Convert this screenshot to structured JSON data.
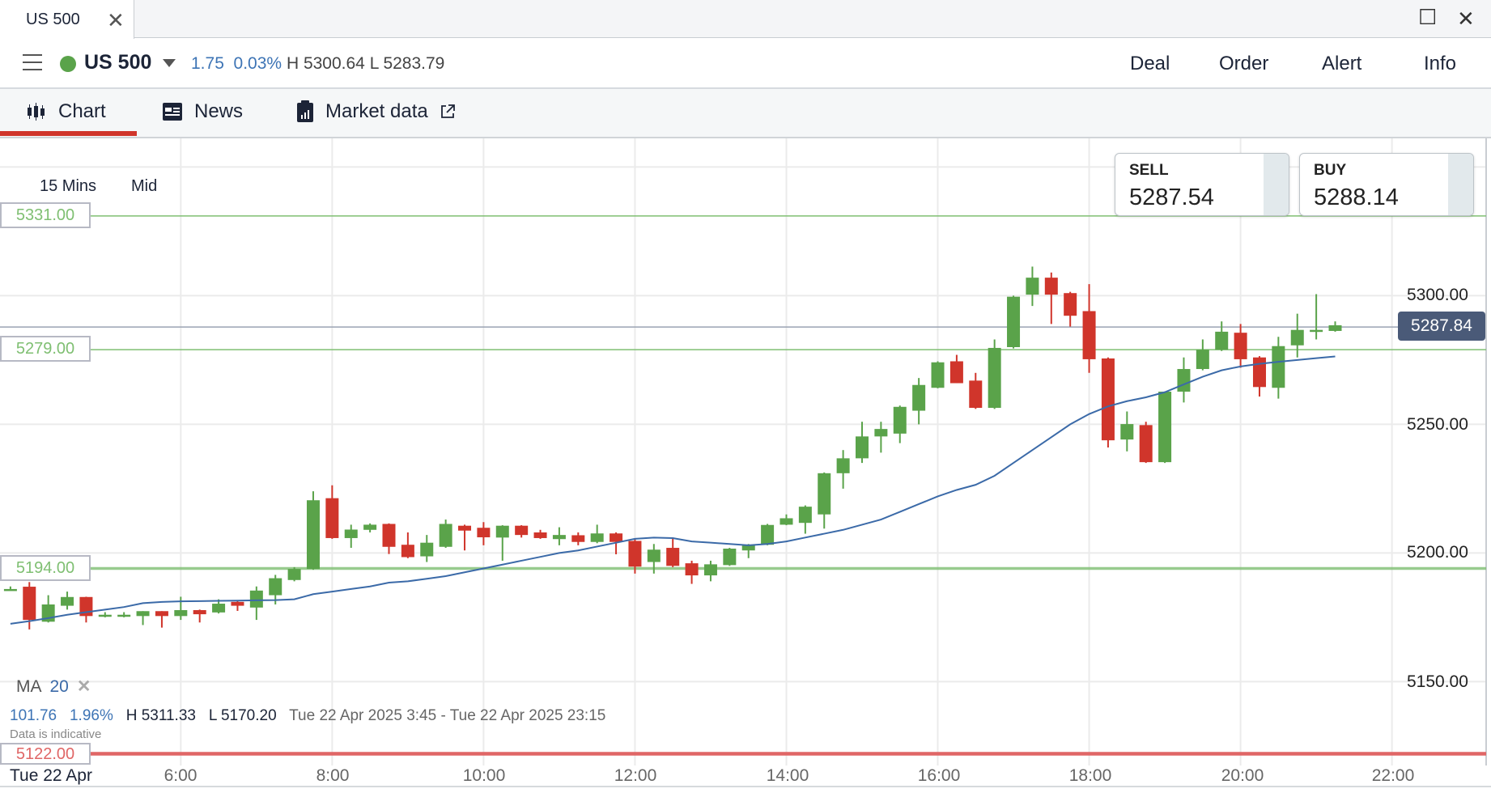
{
  "window": {
    "tab_title": "US 500",
    "close_icon": "close-icon",
    "maximize_icon": "maximize-icon"
  },
  "header": {
    "instrument": "US 500",
    "status_color": "#5aa34a",
    "change": "1.75",
    "change_pct": "0.03%",
    "high": "H 5300.64",
    "low": "L 5283.79",
    "actions": [
      "Deal",
      "Order",
      "Alert",
      "Info"
    ]
  },
  "nav": {
    "tabs": [
      {
        "label": "Chart",
        "icon": "candlestick-icon",
        "active": true
      },
      {
        "label": "News",
        "icon": "newspaper-icon"
      },
      {
        "label": "Market data",
        "icon": "clipboard-chart-icon",
        "external": true
      }
    ]
  },
  "chart": {
    "interval": "15 Mins",
    "price_type": "Mid",
    "sell": {
      "label": "SELL",
      "value": "5287.54"
    },
    "buy": {
      "label": "BUY",
      "value": "5288.14"
    },
    "current_price": "5287.84",
    "levels": [
      {
        "value": "5331.00",
        "color": "#7fbf72"
      },
      {
        "value": "5279.00",
        "color": "#7fbf72"
      },
      {
        "value": "5194.00",
        "color": "#7fbf72"
      },
      {
        "value": "5122.00",
        "color": "#e06666"
      }
    ],
    "indicator": {
      "name": "MA",
      "period": "20",
      "color": "#3b6aa8"
    },
    "stats": {
      "change": "101.76",
      "change_pct": "1.96%",
      "high": "H 5311.33",
      "low": "L 5170.20",
      "range": "Tue 22 Apr 2025 3:45 - Tue 22 Apr 2025 23:15"
    },
    "disclaimer": "Data is indicative",
    "date_label": "Tue 22 Apr",
    "colors": {
      "up": "#5aa34a",
      "down": "#d0352b"
    }
  },
  "chart_data": {
    "type": "candlestick",
    "interval_minutes": 15,
    "start_time": "3:45",
    "x_ticks": [
      "6:00",
      "8:00",
      "10:00",
      "12:00",
      "14:00",
      "16:00",
      "18:00",
      "20:00",
      "22:00"
    ],
    "y_ticks": [
      "5300.00",
      "5250.00",
      "5200.00",
      "5150.00"
    ],
    "ylim": [
      5115,
      5358
    ],
    "grid": true,
    "ohlc": [
      [
        5186,
        5187,
        5185.5,
        5186
      ],
      [
        5186.9,
        5188.7,
        5170.3,
        5174
      ],
      [
        5173.3,
        5183.6,
        5173,
        5180
      ],
      [
        5179.5,
        5185,
        5178,
        5182.9
      ],
      [
        5182.9,
        5183,
        5173,
        5175.5
      ],
      [
        5176,
        5177,
        5175,
        5176
      ],
      [
        5176,
        5177,
        5175,
        5176
      ],
      [
        5175.5,
        5177.4,
        5172,
        5177.4
      ],
      [
        5177.4,
        5177.4,
        5171,
        5175.5
      ],
      [
        5175.5,
        5183,
        5174,
        5177.8
      ],
      [
        5177.8,
        5178,
        5173,
        5176.2
      ],
      [
        5176.9,
        5182,
        5176.5,
        5180.3
      ],
      [
        5181,
        5181.5,
        5177.5,
        5179.5
      ],
      [
        5178.8,
        5187,
        5174,
        5185.4
      ],
      [
        5183.6,
        5191.5,
        5180,
        5190.2
      ],
      [
        5189.5,
        5194.5,
        5189,
        5193.8
      ],
      [
        5193.8,
        5224,
        5193.5,
        5220.5
      ],
      [
        5221.3,
        5226.3,
        5205.5,
        5205.8
      ],
      [
        5205.8,
        5211,
        5202,
        5209.1
      ],
      [
        5209,
        5211.5,
        5208,
        5211
      ],
      [
        5211.3,
        5211.5,
        5199.6,
        5202.4
      ],
      [
        5203.2,
        5208,
        5198,
        5198.4
      ],
      [
        5198.7,
        5207,
        5196.5,
        5204
      ],
      [
        5202.4,
        5213,
        5202,
        5211.3
      ],
      [
        5210.6,
        5211,
        5201,
        5208.7
      ],
      [
        5209.8,
        5212,
        5203,
        5206.1
      ],
      [
        5206,
        5210.8,
        5197,
        5210.6
      ],
      [
        5210.6,
        5210.8,
        5206,
        5207
      ],
      [
        5208,
        5209,
        5205.5,
        5205.8
      ],
      [
        5205.4,
        5210,
        5203,
        5207
      ],
      [
        5206.9,
        5208,
        5203,
        5204.3
      ],
      [
        5204.3,
        5211,
        5203.8,
        5207.6
      ],
      [
        5207.6,
        5208,
        5199.5,
        5204.3
      ],
      [
        5204.7,
        5205.5,
        5192,
        5194.7
      ],
      [
        5196.5,
        5203.5,
        5192,
        5201.3
      ],
      [
        5202,
        5206,
        5194.5,
        5195
      ],
      [
        5196,
        5197,
        5188,
        5191.3
      ],
      [
        5191.3,
        5197,
        5189,
        5195.6
      ],
      [
        5195.3,
        5202,
        5195,
        5201.7
      ],
      [
        5201,
        5203.5,
        5198,
        5203
      ],
      [
        5203.2,
        5211.3,
        5203,
        5210.9
      ],
      [
        5211,
        5215,
        5210.8,
        5213.5
      ],
      [
        5211.7,
        5218.5,
        5207.5,
        5218
      ],
      [
        5215,
        5231.3,
        5209.5,
        5231
      ],
      [
        5231,
        5240,
        5225,
        5236.8
      ],
      [
        5236.8,
        5251,
        5235,
        5245.3
      ],
      [
        5245.3,
        5251,
        5239,
        5248.2
      ],
      [
        5246.4,
        5257.3,
        5242.7,
        5256.8
      ],
      [
        5255.3,
        5268,
        5250,
        5265.3
      ],
      [
        5264.2,
        5274.5,
        5264,
        5274.1
      ],
      [
        5274.5,
        5277,
        5266,
        5266
      ],
      [
        5267,
        5270,
        5256,
        5256.4
      ],
      [
        5256.4,
        5283,
        5256,
        5279.7
      ],
      [
        5280,
        5300,
        5279.5,
        5299.6
      ],
      [
        5300.4,
        5311.3,
        5296,
        5307
      ],
      [
        5307,
        5309,
        5289,
        5300.4
      ],
      [
        5301,
        5301.5,
        5288,
        5292.2
      ],
      [
        5294,
        5304.5,
        5270,
        5275.3
      ],
      [
        5275.6,
        5276,
        5241,
        5243.8
      ],
      [
        5244.1,
        5255,
        5239.5,
        5250.1
      ],
      [
        5249.7,
        5251,
        5235,
        5235.3
      ],
      [
        5235.3,
        5262.7,
        5235,
        5262.7
      ],
      [
        5262.7,
        5276,
        5258.5,
        5271.5
      ],
      [
        5271.5,
        5283,
        5271,
        5279
      ],
      [
        5279,
        5290,
        5278.5,
        5286
      ],
      [
        5285.6,
        5289,
        5272,
        5275.3
      ],
      [
        5276,
        5276.5,
        5260.8,
        5264.5
      ],
      [
        5264.2,
        5284,
        5260,
        5280.4
      ],
      [
        5280.7,
        5293,
        5276,
        5286.7
      ],
      [
        5286.7,
        5300.6,
        5283,
        5286.7
      ],
      [
        5286.3,
        5290,
        5286,
        5288.5
      ]
    ],
    "ma20": [
      5172.5,
      5173.5,
      5174.7,
      5176,
      5177,
      5178,
      5179,
      5180.5,
      5181,
      5181.2,
      5181.3,
      5181.4,
      5181.5,
      5181.6,
      5181.7,
      5182,
      5184,
      5185,
      5186,
      5187,
      5188.5,
      5189,
      5190,
      5191,
      5192.5,
      5194,
      5195.5,
      5197,
      5198.5,
      5200,
      5201,
      5202.5,
      5204,
      5205.5,
      5206,
      5205.8,
      5204.5,
      5204,
      5203.5,
      5203,
      5203.5,
      5204.5,
      5206,
      5207.5,
      5209,
      5211,
      5213,
      5216,
      5219,
      5222,
      5224.5,
      5226.5,
      5230,
      5235,
      5240,
      5245,
      5250,
      5254,
      5257,
      5259,
      5260.5,
      5262.5,
      5265.5,
      5268.5,
      5271,
      5272.5,
      5273.5,
      5274.3,
      5275,
      5275.7,
      5276.4
    ]
  }
}
